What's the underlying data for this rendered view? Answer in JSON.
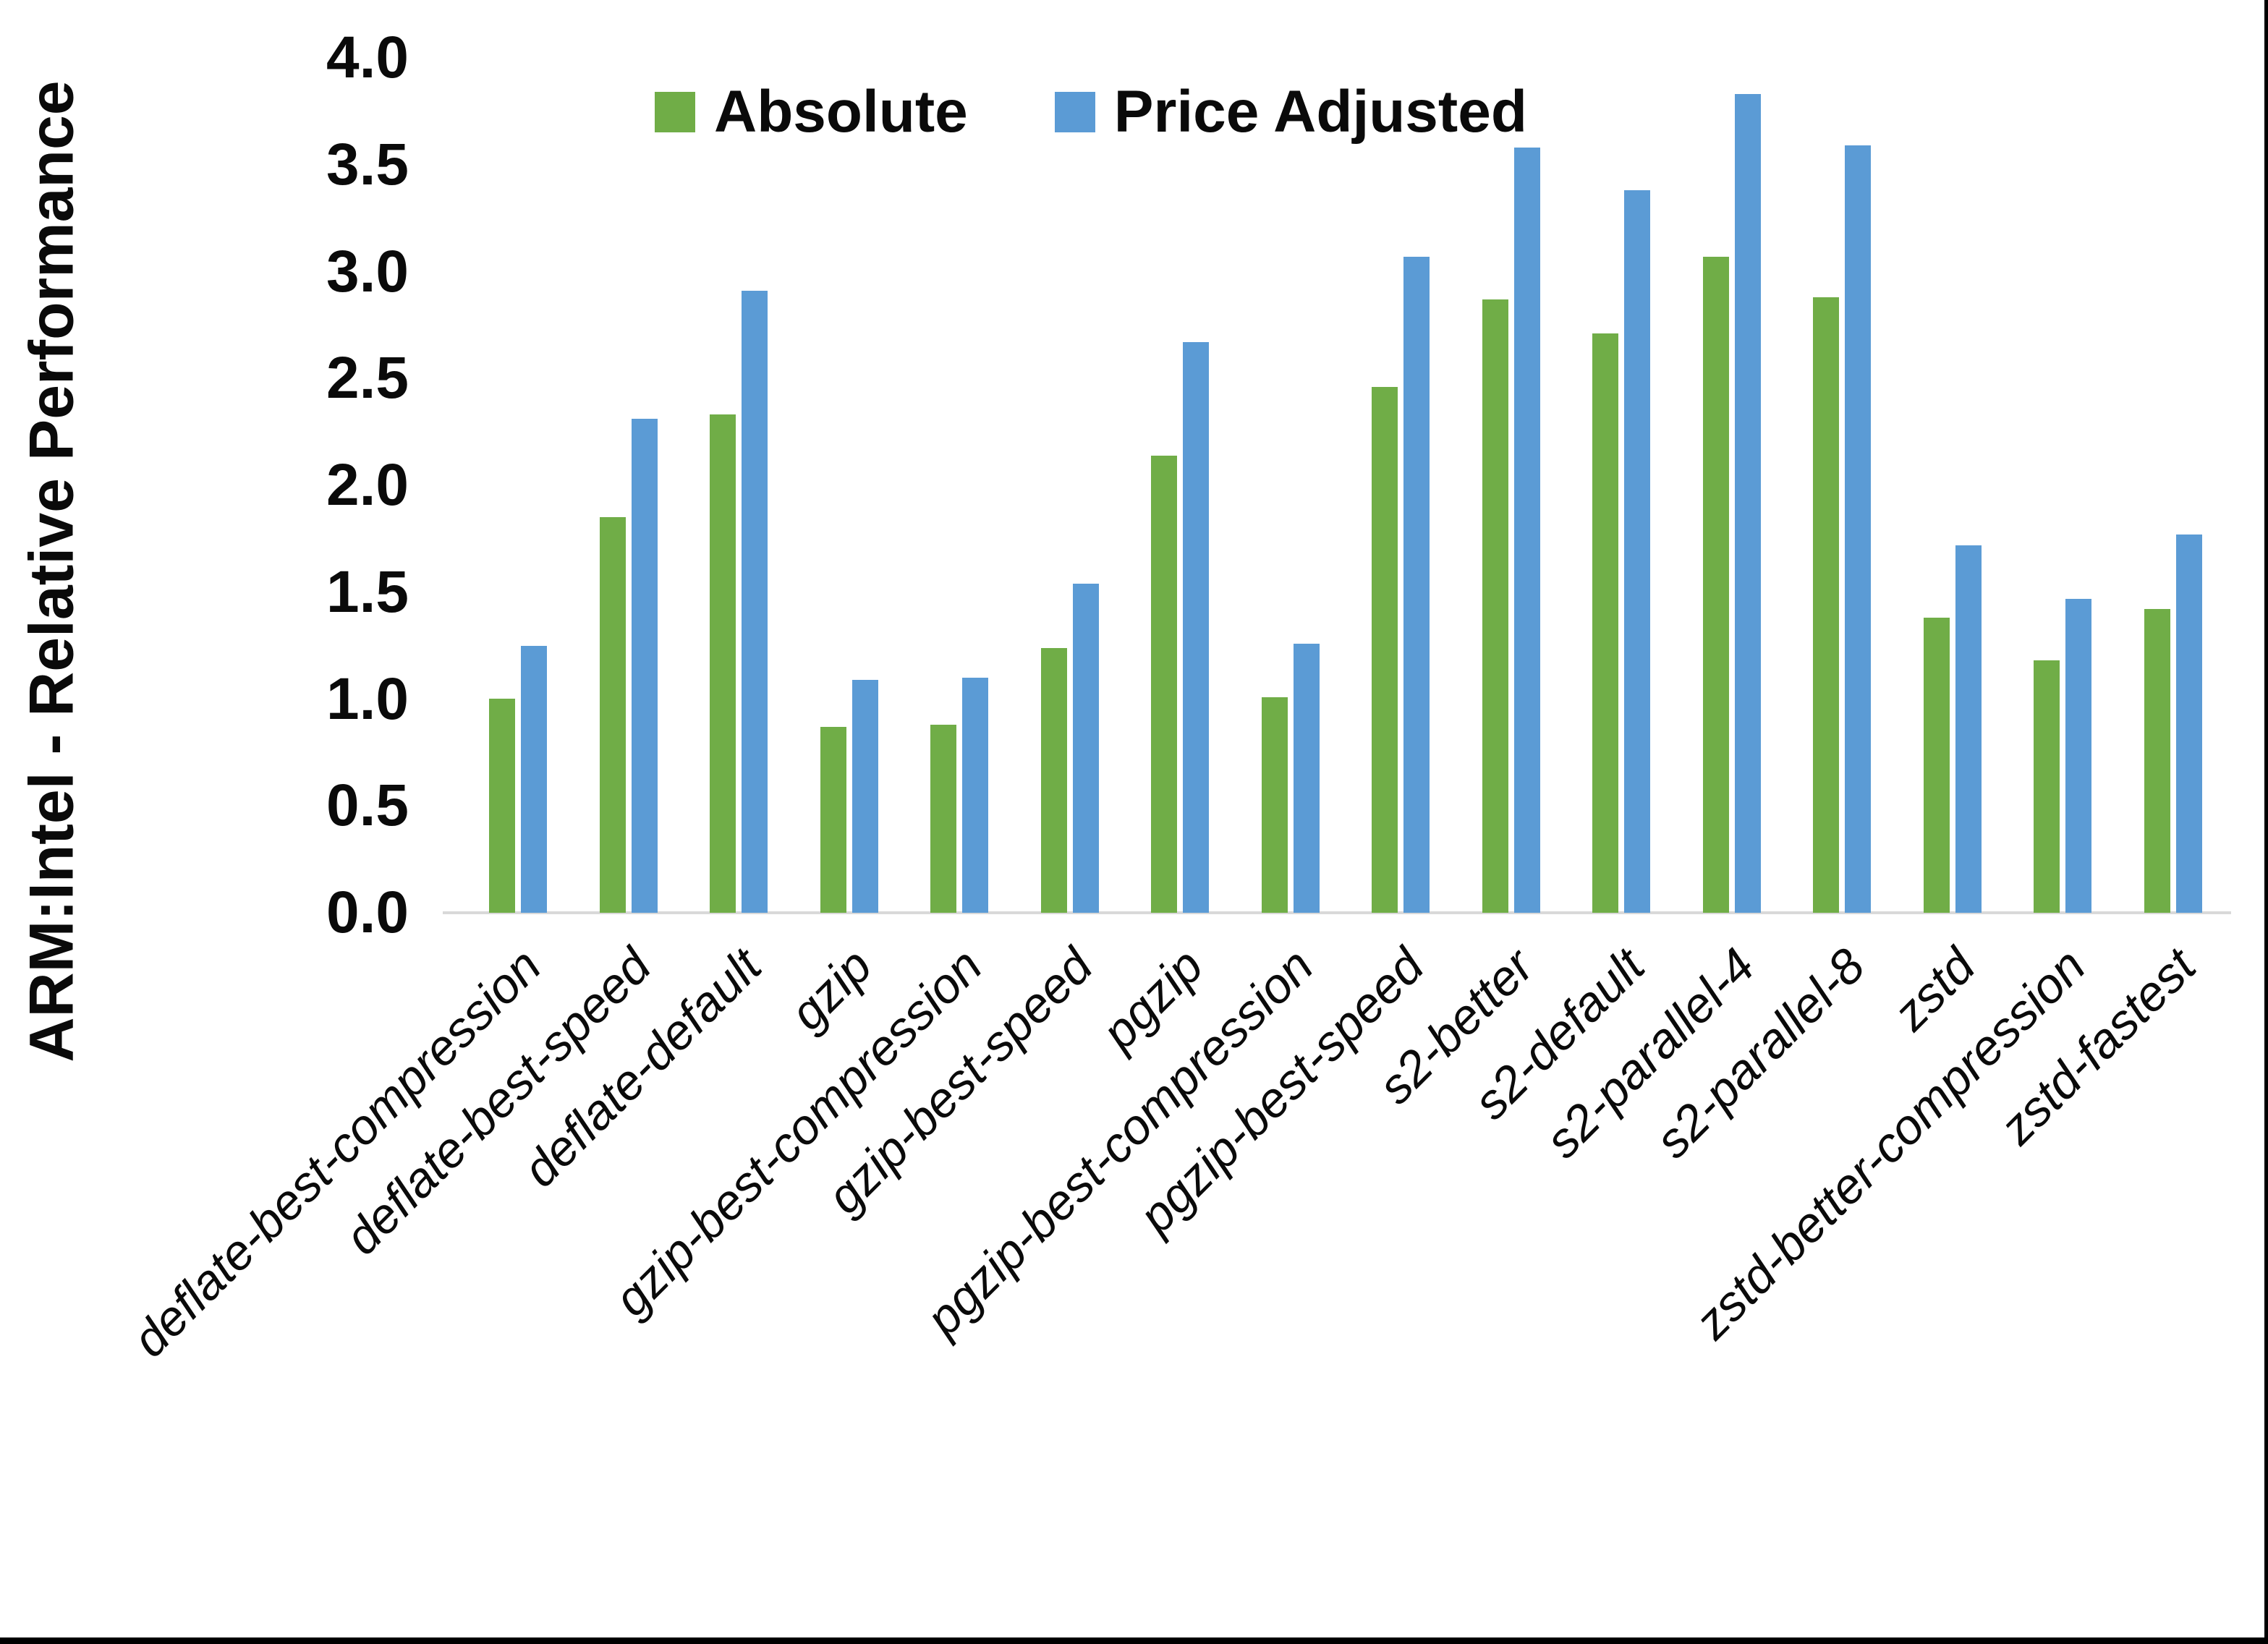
{
  "chart_data": {
    "type": "bar",
    "title": "",
    "xlabel": "",
    "ylabel": "ARM:Intel - Relative Performance",
    "ylim": [
      0.0,
      4.0
    ],
    "ytick_step": 0.5,
    "ytick_labels": [
      "0.0",
      "0.5",
      "1.0",
      "1.5",
      "2.0",
      "2.5",
      "3.0",
      "3.5",
      "4.0"
    ],
    "grid": false,
    "legend_position": "top-center",
    "categories": [
      "deflate-best-compression",
      "deflate-best-speed",
      "deflate-default",
      "gzip",
      "gzip-best-compression",
      "gzip-best-speed",
      "pgzip",
      "pgzip-best-compression",
      "pgzip-best-speed",
      "s2-better",
      "s2-default",
      "s2-parallel-4",
      "s2-parallel-8",
      "zstd",
      "zstd-better-compression",
      "zstd-fastest"
    ],
    "series": [
      {
        "name": "Absolute",
        "color": "#70AD47",
        "values": [
          1.0,
          1.85,
          2.33,
          0.87,
          0.88,
          1.24,
          2.14,
          1.01,
          2.46,
          2.87,
          2.71,
          3.07,
          2.88,
          1.38,
          1.18,
          1.42
        ]
      },
      {
        "name": "Price Adjusted",
        "color": "#5B9BD5",
        "values": [
          1.25,
          2.31,
          2.91,
          1.09,
          1.1,
          1.54,
          2.67,
          1.26,
          3.07,
          3.58,
          3.38,
          3.83,
          3.59,
          1.72,
          1.47,
          1.77
        ]
      }
    ]
  },
  "colors": {
    "background": "#ffffff",
    "axis_line": "#d9d9d9",
    "text": "#0a0a0a",
    "frame_border": "#000000"
  }
}
